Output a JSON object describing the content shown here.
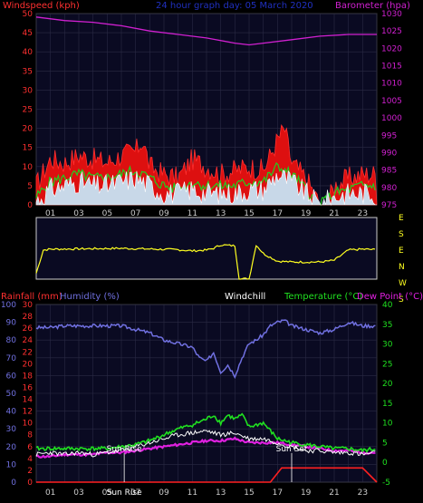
{
  "chart_data": [
    {
      "type": "line",
      "title": "24 hour graph day: 05 March 2020",
      "ylabel": "Windspeed (kph)",
      "y2label": "Barometer (hpa)",
      "ylim": [
        0,
        50
      ],
      "y2lim": [
        975,
        1030
      ],
      "yticks": [
        "50",
        "45",
        "40",
        "35",
        "30",
        "25",
        "20",
        "15",
        "10",
        "5",
        "0"
      ],
      "y2ticks": [
        "1030",
        "1025",
        "1020",
        "1015",
        "1010",
        "1005",
        "1000",
        "995",
        "990",
        "985",
        "980",
        "975"
      ],
      "xticks": [
        "01",
        "03",
        "05",
        "07",
        "09",
        "11",
        "13",
        "15",
        "17",
        "19",
        "21",
        "23"
      ],
      "grid": true,
      "colors": {
        "gust": "#ff2020",
        "average": "#20d020",
        "wind_white": "#ffffff",
        "barometer": "#d020d0",
        "axis_left": "#ff3030",
        "axis_right": "#d020d0",
        "title": "#2030c0",
        "plot_bg": "#0a0a22"
      },
      "series": [
        {
          "name": "Barometer",
          "color": "#d020d0",
          "x": [
            0,
            2,
            4,
            6,
            8,
            10,
            12,
            14,
            15,
            16,
            18,
            20,
            22,
            24
          ],
          "values": [
            1029,
            1028,
            1027.5,
            1026.5,
            1025,
            1024,
            1023,
            1021.5,
            1021,
            1021.5,
            1022.5,
            1023.5,
            1024,
            1024
          ]
        },
        {
          "name": "Gust",
          "color": "#ff2020",
          "x": [
            0,
            1,
            2,
            3,
            4,
            5,
            6,
            7,
            7.5,
            8,
            9,
            10,
            11,
            12,
            13,
            14,
            15,
            16,
            17,
            17.5,
            18,
            19,
            20,
            20.5,
            21,
            22,
            23,
            24
          ],
          "values": [
            5,
            12,
            11,
            13,
            12,
            11,
            13,
            14,
            17,
            10,
            8,
            7,
            12,
            10,
            8,
            9,
            10,
            9,
            17,
            20,
            11,
            7,
            0,
            0,
            5,
            7,
            8,
            8
          ]
        },
        {
          "name": "Average",
          "color": "#20d020",
          "x": [
            0,
            1,
            2,
            3,
            4,
            5,
            6,
            7,
            8,
            9,
            10,
            11,
            12,
            13,
            14,
            15,
            16,
            17,
            18,
            19,
            20,
            21,
            22,
            23,
            24
          ],
          "values": [
            2,
            6,
            7,
            8,
            7,
            7,
            8,
            9,
            7,
            5,
            4,
            6,
            5,
            5,
            5,
            6,
            6,
            10,
            8,
            4,
            0,
            3,
            4,
            5,
            5
          ]
        },
        {
          "name": "Wind",
          "color": "#ffffff",
          "x": [
            0,
            1,
            2,
            3,
            4,
            5,
            6,
            7,
            8,
            9,
            10,
            11,
            12,
            13,
            14,
            15,
            16,
            17,
            18,
            19,
            20,
            21,
            22,
            23,
            24
          ],
          "values": [
            1,
            4,
            5,
            6,
            5,
            5,
            6,
            7,
            5,
            3,
            3,
            4,
            3,
            3,
            3,
            4,
            4,
            8,
            6,
            3,
            0,
            2,
            3,
            3,
            3
          ]
        }
      ]
    },
    {
      "type": "line",
      "ylabels": [
        "E",
        "S",
        "E",
        "N",
        "W",
        "S"
      ],
      "colors": {
        "line": "#ffff20",
        "plot_bg": "#0a0a22",
        "label": "#ffff20"
      },
      "series": [
        {
          "name": "Wind Direction",
          "color": "#ffff20",
          "x": [
            0,
            0.5,
            1,
            4,
            6,
            8,
            10,
            11,
            12,
            12.5,
            13,
            14,
            14.3,
            15,
            15.5,
            16,
            17,
            18,
            19,
            20,
            21,
            22,
            23,
            24
          ],
          "values": [
            35,
            170,
            175,
            178,
            180,
            176,
            172,
            165,
            170,
            180,
            200,
            195,
            2,
            2,
            200,
            150,
            105,
            100,
            100,
            100,
            110,
            170,
            175,
            172
          ]
        }
      ]
    },
    {
      "type": "line",
      "ylabel": "Rainfall (mm)",
      "ylabel2": "Humidity (%)",
      "title": "Windchill",
      "y2label": "Temperature (°C)",
      "y2label2": "Dew Point (°C)",
      "ylim_humidity": [
        0,
        100
      ],
      "ylim_rain": [
        0,
        30
      ],
      "y2lim": [
        -5,
        40
      ],
      "yticks_humidity": [
        "100",
        "90",
        "80",
        "70",
        "60",
        "50",
        "40",
        "30",
        "20",
        "10",
        "0"
      ],
      "yticks_rain": [
        "30",
        "28",
        "26",
        "24",
        "22",
        "20",
        "18",
        "16",
        "14",
        "12",
        "10",
        "8",
        "6",
        "4",
        "2",
        "0"
      ],
      "y2ticks": [
        "40",
        "35",
        "30",
        "25",
        "20",
        "15",
        "10",
        "5",
        "0",
        "-5"
      ],
      "xticks": [
        "01",
        "03",
        "05",
        "07",
        "09",
        "11",
        "13",
        "15",
        "17",
        "19",
        "21",
        "23"
      ],
      "annotations": [
        "Sun Rise",
        "Sun Set"
      ],
      "xlabel_sun": "Sun Rise",
      "colors": {
        "rain": "#ff2020",
        "humidity": "#7070e0",
        "windchill": "#ffffff",
        "temperature": "#20e020",
        "dewpoint": "#e020e0",
        "axis_left": "#ff3030",
        "axis_hum": "#7070e0",
        "axis_right": "#20e020",
        "plot_bg": "#0a0a22"
      },
      "series": [
        {
          "name": "Humidity",
          "color": "#7070e0",
          "x": [
            0,
            1,
            2,
            3,
            4,
            5,
            6,
            7,
            8,
            9,
            10,
            11,
            11.5,
            12,
            12.5,
            13,
            13.5,
            14,
            14.5,
            15,
            15.5,
            16,
            16.5,
            17,
            17.5,
            18,
            19,
            20,
            21,
            22,
            23,
            24
          ],
          "values": [
            87,
            87,
            88,
            88,
            88,
            88,
            88,
            86,
            84,
            80,
            78,
            76,
            70,
            68,
            73,
            62,
            66,
            60,
            70,
            78,
            80,
            83,
            88,
            90,
            91,
            88,
            86,
            84,
            86,
            90,
            88,
            88
          ]
        },
        {
          "name": "Temperature",
          "color": "#20e020",
          "x": [
            0,
            1,
            2,
            3,
            4,
            5,
            6,
            7,
            8,
            9,
            10,
            11,
            12,
            12.5,
            13,
            13.5,
            14,
            14.5,
            15,
            16,
            16.5,
            17,
            18,
            19,
            20,
            21,
            22,
            23,
            24
          ],
          "values": [
            3.5,
            3.5,
            3.5,
            3.5,
            3.5,
            3.5,
            4,
            4.5,
            5.5,
            7,
            8.5,
            9.5,
            11,
            12,
            10,
            12,
            11,
            12,
            9,
            10,
            8,
            6,
            5,
            4.5,
            4,
            3.5,
            3.5,
            3,
            3.5
          ]
        },
        {
          "name": "Windchill",
          "color": "#ffffff",
          "x": [
            0,
            1,
            2,
            3,
            4,
            5,
            6,
            7,
            8,
            9,
            10,
            11,
            12,
            13,
            14,
            15,
            16,
            17,
            18,
            19,
            20,
            21,
            22,
            23,
            24
          ],
          "values": [
            2,
            2.5,
            2,
            2.5,
            2,
            2.5,
            3,
            4,
            5,
            6,
            7,
            7.5,
            8,
            7,
            7.5,
            6,
            6,
            5,
            4,
            3,
            3,
            2.5,
            2.5,
            2,
            2.5
          ]
        },
        {
          "name": "Dew Point",
          "color": "#e020e0",
          "x": [
            0,
            1,
            2,
            3,
            4,
            5,
            6,
            7,
            8,
            9,
            10,
            11,
            12,
            13,
            14,
            15,
            16,
            17,
            18,
            19,
            20,
            21,
            22,
            23,
            24
          ],
          "values": [
            1.5,
            1.5,
            2,
            2,
            2,
            2.5,
            2.5,
            3,
            3.5,
            4,
            4.5,
            5,
            5.5,
            5.5,
            6,
            5,
            5,
            5,
            4.5,
            4,
            3.5,
            3,
            3,
            2.5,
            2.5
          ]
        },
        {
          "name": "Rainfall",
          "color": "#ff2020",
          "x": [
            0,
            16.5,
            17.3,
            18,
            20,
            22,
            23,
            24
          ],
          "values": [
            0,
            0,
            2.4,
            2.4,
            2.4,
            2.4,
            2.4,
            0
          ]
        }
      ]
    }
  ]
}
